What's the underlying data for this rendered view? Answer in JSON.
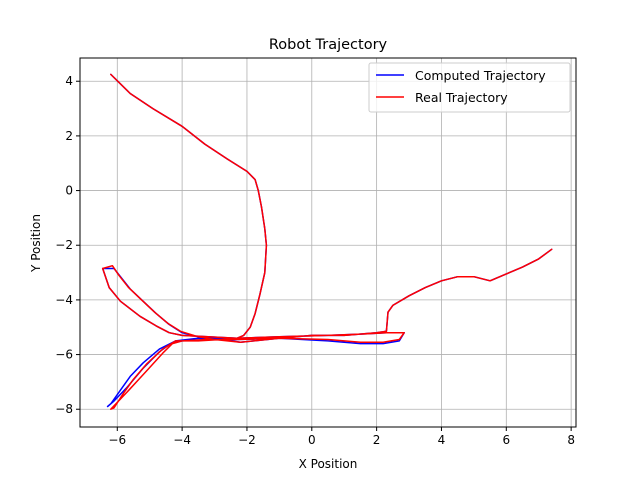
{
  "chart_data": {
    "type": "line",
    "title": "Robot Trajectory",
    "xlabel": "X Position",
    "ylabel": "Y Position",
    "xlim": [
      -7.15,
      8.15
    ],
    "ylim": [
      -8.65,
      4.85
    ],
    "xticks": [
      -6,
      -4,
      -2,
      0,
      2,
      4,
      6,
      8
    ],
    "yticks": [
      -8,
      -6,
      -4,
      -2,
      0,
      2,
      4
    ],
    "xtick_labels": [
      "−6",
      "−4",
      "−2",
      "0",
      "2",
      "4",
      "6",
      "8"
    ],
    "ytick_labels": [
      "−8",
      "−6",
      "−4",
      "−2",
      "0",
      "2",
      "4"
    ],
    "grid": true,
    "legend_position": "top-right",
    "series": [
      {
        "name": "Computed Trajectory",
        "color": "#0000ff",
        "x": [
          -6.2,
          -5.6,
          -4.9,
          -4.0,
          -3.3,
          -2.6,
          -2.0,
          -1.75,
          -1.65,
          -1.55,
          -1.45,
          -1.4,
          -1.45,
          -1.6,
          -1.75,
          -1.9,
          -2.1,
          -2.3,
          -2.8,
          -3.5,
          -4.2,
          -4.7,
          -5.2,
          -5.6,
          -5.9,
          -6.2,
          -6.3,
          -6.1,
          -5.7,
          -5.2,
          -4.7,
          -4.35,
          -4.0,
          -3.2,
          -2.3,
          -1.0,
          0.5,
          1.5,
          2.2,
          2.7,
          2.85,
          2.75,
          2.3,
          1.5,
          0.5,
          -1.0,
          -2.3,
          -3.2,
          -4.0,
          -4.4,
          -4.8,
          -5.3,
          -5.9,
          -6.25,
          -6.45,
          -6.1,
          -5.9,
          -5.6,
          -5.2,
          -4.8,
          -4.4,
          -4.0,
          -3.5,
          -3.0,
          -2.2,
          -1.0,
          0.0,
          1.0,
          2.0,
          2.3,
          2.35,
          2.5,
          3.0,
          3.5,
          4.0,
          4.5,
          5.0,
          5.5,
          6.0,
          6.5,
          7.0,
          7.4
        ],
        "y": [
          4.25,
          3.55,
          3.0,
          2.35,
          1.7,
          1.15,
          0.7,
          0.4,
          0.0,
          -0.6,
          -1.4,
          -2.0,
          -3.0,
          -3.8,
          -4.5,
          -5.0,
          -5.3,
          -5.4,
          -5.4,
          -5.4,
          -5.5,
          -5.8,
          -6.3,
          -6.8,
          -7.3,
          -7.8,
          -7.9,
          -7.7,
          -7.2,
          -6.5,
          -5.9,
          -5.6,
          -5.5,
          -5.45,
          -5.45,
          -5.4,
          -5.5,
          -5.6,
          -5.6,
          -5.5,
          -5.2,
          -5.2,
          -5.2,
          -5.25,
          -5.3,
          -5.35,
          -5.4,
          -5.35,
          -5.3,
          -5.2,
          -4.95,
          -4.6,
          -4.05,
          -3.55,
          -2.85,
          -2.85,
          -3.15,
          -3.6,
          -4.05,
          -4.5,
          -4.9,
          -5.2,
          -5.35,
          -5.4,
          -5.55,
          -5.4,
          -5.3,
          -5.3,
          -5.2,
          -5.15,
          -4.45,
          -4.2,
          -3.85,
          -3.55,
          -3.3,
          -3.15,
          -3.15,
          -3.3,
          -3.05,
          -2.8,
          -2.5,
          -2.15
        ]
      },
      {
        "name": "Real Trajectory",
        "color": "#ff0000",
        "x": [
          -6.2,
          -5.6,
          -4.9,
          -4.0,
          -3.3,
          -2.6,
          -2.0,
          -1.75,
          -1.65,
          -1.55,
          -1.45,
          -1.4,
          -1.45,
          -1.6,
          -1.75,
          -1.9,
          -2.1,
          -2.3,
          -2.8,
          -3.5,
          -4.2,
          -4.6,
          -5.1,
          -5.5,
          -5.8,
          -6.1,
          -6.2,
          -6.0,
          -5.6,
          -5.1,
          -4.6,
          -4.3,
          -4.0,
          -3.2,
          -2.3,
          -1.0,
          0.5,
          1.5,
          2.2,
          2.7,
          2.85,
          2.75,
          2.3,
          1.5,
          0.5,
          -1.0,
          -2.3,
          -3.2,
          -4.0,
          -4.4,
          -4.8,
          -5.3,
          -5.9,
          -6.25,
          -6.45,
          -6.15,
          -5.95,
          -5.65,
          -5.25,
          -4.85,
          -4.45,
          -4.05,
          -3.5,
          -3.0,
          -2.2,
          -1.0,
          0.0,
          1.0,
          2.0,
          2.3,
          2.35,
          2.5,
          3.0,
          3.5,
          4.0,
          4.5,
          5.0,
          5.5,
          6.0,
          6.5,
          7.0,
          7.4
        ],
        "y": [
          4.25,
          3.55,
          3.0,
          2.35,
          1.7,
          1.15,
          0.7,
          0.4,
          0.0,
          -0.6,
          -1.4,
          -2.0,
          -3.0,
          -3.8,
          -4.5,
          -5.0,
          -5.3,
          -5.4,
          -5.45,
          -5.5,
          -5.5,
          -5.8,
          -6.35,
          -6.9,
          -7.4,
          -7.95,
          -8.0,
          -7.75,
          -7.25,
          -6.6,
          -5.95,
          -5.6,
          -5.5,
          -5.45,
          -5.45,
          -5.4,
          -5.45,
          -5.55,
          -5.55,
          -5.45,
          -5.2,
          -5.2,
          -5.2,
          -5.25,
          -5.3,
          -5.35,
          -5.4,
          -5.35,
          -5.3,
          -5.2,
          -4.95,
          -4.6,
          -4.05,
          -3.55,
          -2.85,
          -2.75,
          -3.1,
          -3.55,
          -4.0,
          -4.45,
          -4.85,
          -5.15,
          -5.35,
          -5.45,
          -5.55,
          -5.4,
          -5.3,
          -5.3,
          -5.2,
          -5.15,
          -4.45,
          -4.2,
          -3.85,
          -3.55,
          -3.3,
          -3.15,
          -3.15,
          -3.3,
          -3.05,
          -2.8,
          -2.5,
          -2.15
        ]
      }
    ]
  }
}
